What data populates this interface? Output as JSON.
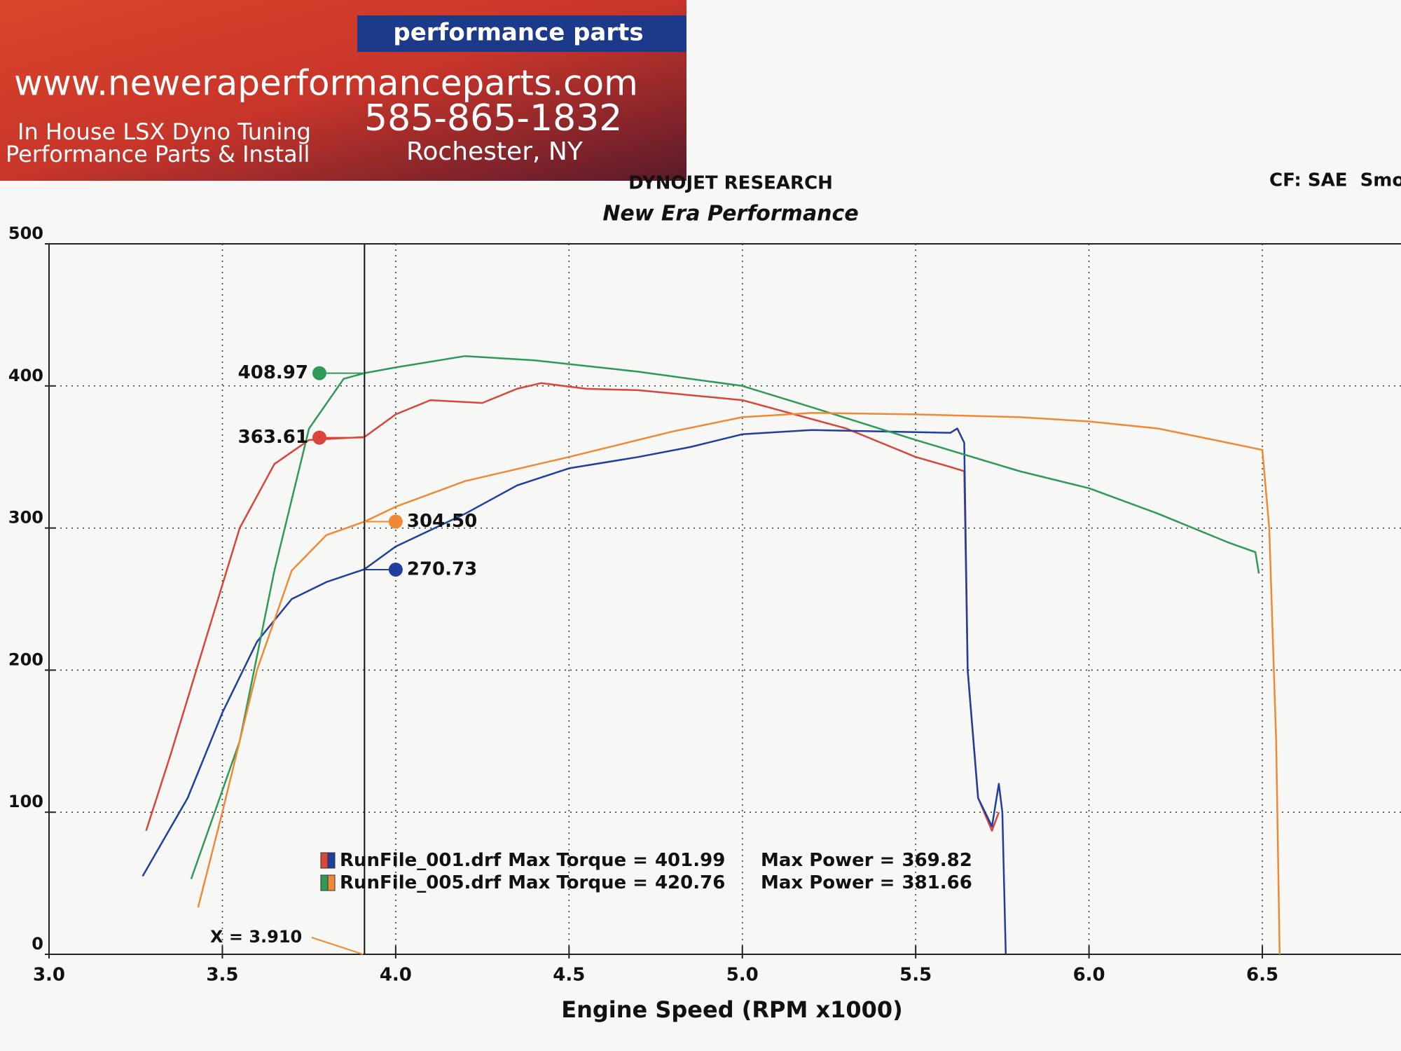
{
  "logo": {
    "tagline": "performance parts",
    "url": "www.neweraperformanceparts.com",
    "service": "In House LSX Dyno Tuning",
    "phone": "585-865-1832",
    "install": "Performance Parts & Install",
    "location": "Rochester, NY"
  },
  "chart_data": {
    "type": "line",
    "header": "DYNOJET RESEARCH",
    "correction": "CF: SAE  Smo",
    "title": "New Era Performance",
    "x_label": "Engine Speed (RPM x1000)",
    "xlim": [
      3.0,
      6.9
    ],
    "ylim": [
      0,
      500
    ],
    "xticks": [
      {
        "value": 3,
        "label": "3.0"
      },
      3.5,
      {
        "value": 4,
        "label": "4.0"
      },
      4.5,
      {
        "value": 5,
        "label": "5.0"
      },
      5.5,
      {
        "value": 6,
        "label": "6.0"
      },
      6.5
    ],
    "yticks": [
      0,
      100,
      200,
      300,
      400,
      500
    ],
    "grid": true,
    "series": [
      {
        "color": "#d9453a",
        "x": [
          3.28,
          3.35,
          3.45,
          3.55,
          3.65,
          3.75,
          3.91,
          4.0,
          4.1,
          4.25,
          4.35,
          4.42,
          4.55,
          4.7,
          5.0,
          5.3,
          5.5,
          5.6,
          5.64,
          5.65,
          5.68,
          5.72,
          5.74
        ],
        "values": [
          87,
          140,
          220,
          300,
          345,
          362,
          364,
          380,
          390,
          388,
          398,
          402,
          398,
          397,
          390,
          370,
          350,
          343,
          340,
          200,
          110,
          87,
          100
        ]
      },
      {
        "color": "#1f3f9e",
        "x": [
          3.27,
          3.4,
          3.5,
          3.6,
          3.7,
          3.8,
          3.91,
          4.0,
          4.2,
          4.35,
          4.5,
          4.7,
          4.85,
          5.0,
          5.2,
          5.4,
          5.6,
          5.62,
          5.64,
          5.65,
          5.68,
          5.72,
          5.74,
          5.75,
          5.76
        ],
        "values": [
          55,
          110,
          170,
          220,
          250,
          262,
          271,
          287,
          310,
          330,
          342,
          350,
          357,
          366,
          369,
          368,
          367,
          370,
          360,
          200,
          110,
          90,
          120,
          100,
          0
        ]
      },
      {
        "color": "#2e9a57",
        "x": [
          3.41,
          3.55,
          3.65,
          3.75,
          3.85,
          3.91,
          4.0,
          4.2,
          4.4,
          4.7,
          5.0,
          5.2,
          5.5,
          5.8,
          6.0,
          6.2,
          6.4,
          6.48,
          6.49
        ],
        "values": [
          53,
          150,
          270,
          370,
          405,
          409,
          413,
          421,
          418,
          410,
          400,
          385,
          362,
          340,
          328,
          310,
          290,
          283,
          268
        ]
      },
      {
        "color": "#ee8a35",
        "x": [
          3.43,
          3.5,
          3.6,
          3.7,
          3.8,
          3.91,
          4.0,
          4.2,
          4.5,
          4.8,
          5.0,
          5.2,
          5.5,
          5.8,
          6.0,
          6.2,
          6.4,
          6.5,
          6.52,
          6.54,
          6.55
        ],
        "values": [
          33,
          100,
          200,
          270,
          295,
          304.5,
          315,
          333,
          350,
          368,
          378,
          381,
          380,
          378,
          375,
          370,
          360,
          355,
          300,
          150,
          0
        ]
      }
    ],
    "cursor": {
      "x": 3.91,
      "label": "X = 3.910",
      "values": [
        363.61,
        270.73,
        408.97,
        304.5
      ],
      "value_labels": [
        "363.61",
        "270.73",
        "408.97",
        "304.50"
      ]
    },
    "legend": [
      {
        "file": "RunFile_001.drf",
        "torque_label": "Max Torque =",
        "max_torque": 401.99,
        "power_label": "Max Power =",
        "max_power": 369.82
      },
      {
        "file": "RunFile_005.drf",
        "torque_label": "Max Torque =",
        "max_torque": 420.76,
        "power_label": "Max Power =",
        "max_power": 381.66
      }
    ]
  }
}
